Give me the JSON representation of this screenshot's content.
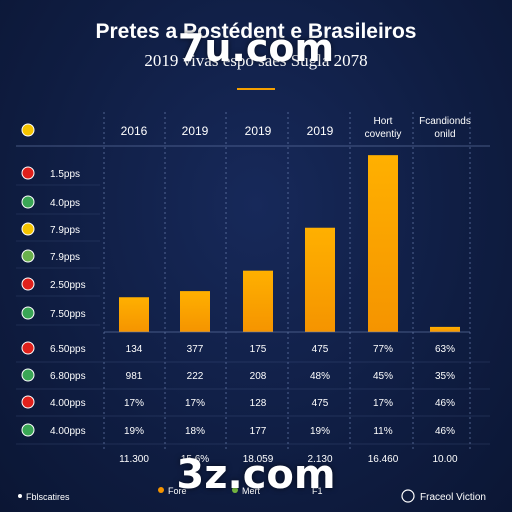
{
  "header": {
    "title": "Pretes a Postédent e Brasileiros",
    "subtitle": "2019 vivas espo saes Sugla 2078"
  },
  "watermarks": [
    "7u.com",
    "3z.com"
  ],
  "colors": {
    "background": "#0f1d42",
    "bar": "#f59400",
    "bar_light": "#ffb000",
    "text": "#ffffff",
    "gridline": "#6b7fae"
  },
  "chart_data": {
    "type": "bar",
    "columns": [
      "2016",
      "2019",
      "2019",
      "2019",
      "Hort coventiy",
      "Fcandionds onild"
    ],
    "categories": [
      "2016",
      "2019",
      "2019",
      "2019",
      "Hort coventiy",
      "Fcandionds onild"
    ],
    "values": [
      3.4,
      4.0,
      6.0,
      10.2,
      17.3,
      0.5
    ],
    "ylim": [
      0,
      18
    ],
    "grid": true,
    "row_labels": [
      "1.5pps",
      "4.0pps",
      "7.9pps",
      "7.9pps",
      "2.50pps",
      "7.50pps"
    ],
    "row_icons": [
      "flag-icon",
      "globe-icon",
      "coin-icon",
      "leaf-icon",
      "flag-icon",
      "globe-icon"
    ],
    "table": {
      "row_labels": [
        "6.50pps",
        "6.80pps",
        "4.00pps",
        "4.00pps"
      ],
      "row_icons": [
        "flag-icon",
        "globe-icon",
        "flag-icon",
        "globe-icon"
      ],
      "rows": [
        [
          "134",
          "377",
          "175",
          "475",
          "77%",
          "63%"
        ],
        [
          "981",
          "222",
          "208",
          "48%",
          "45%",
          "35%"
        ],
        [
          "17%",
          "17%",
          "128",
          "475",
          "17%",
          "46%"
        ],
        [
          "19%",
          "18%",
          "177",
          "19%",
          "11%",
          "46%"
        ]
      ],
      "totals": [
        "11.300",
        "15.6%",
        "18.059",
        "2.130",
        "16.460",
        "10.00"
      ]
    },
    "legend": {
      "placement": "bottom",
      "items": [
        {
          "label": "Fblscatires",
          "color": "#f59400"
        },
        {
          "label": "Fore",
          "color": "#f59400"
        },
        {
          "label": "Mert",
          "color": "#7bc043"
        },
        {
          "label": "F1"
        }
      ]
    },
    "brand": "Fraceol Viction"
  }
}
